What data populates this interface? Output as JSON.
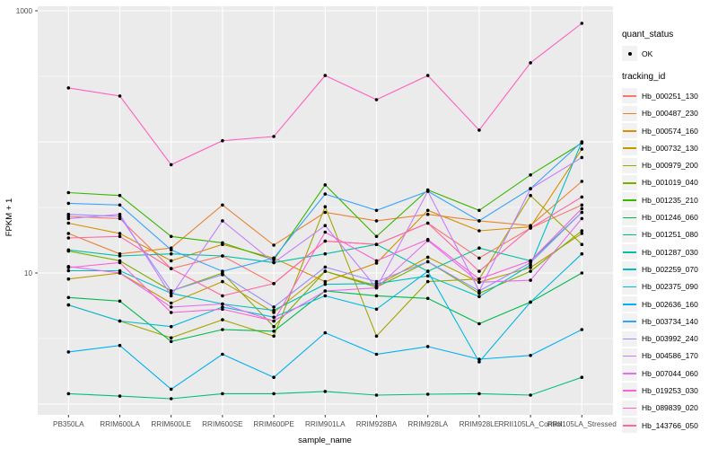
{
  "figure": {
    "background": "#FFFFFF",
    "panel_background": "#EBEBEB",
    "grid_color": "#FFFFFF",
    "tick_label_color": "#4D4D4D",
    "axis_title_color": "#000000",
    "point_color": "#000000",
    "legend_key_background": "#F2F2F2"
  },
  "chart_data": {
    "type": "line",
    "title": "",
    "xlabel": "sample_name",
    "ylabel": "FPKM + 1",
    "grid": true,
    "legend_position": "right",
    "x_categories": [
      "PB350LA",
      "RRIM600LA",
      "RRIM600LE",
      "RRIM600SE",
      "RRIM600PE",
      "RRIM901LA",
      "RRIM928BA",
      "RRIM928LA",
      "RRIM928LE",
      "RRII105LA_Control",
      "RRII105LA_Stressed"
    ],
    "y_scale": "log10",
    "y_tick_values": [
      1000,
      10
    ],
    "y_tick_labels": [
      "1000",
      "10"
    ],
    "y_major_gridlines": [
      1,
      10,
      100,
      1000
    ],
    "y_minor_gridlines": [
      3.162,
      31.62,
      316.2
    ],
    "y_range_approx": [
      0.9,
      1200
    ],
    "legend": {
      "quant_status_title": "quant_status",
      "quant_status_items": [
        "OK"
      ],
      "tracking_id_title": "tracking_id"
    },
    "series": [
      {
        "name": "Hb_000251_130",
        "color": "#F8766D",
        "values": [
          27,
          26,
          10.8,
          13.5,
          8.3,
          17.5,
          16.5,
          24,
          13,
          22,
          33
        ]
      },
      {
        "name": "Hb_000487_230",
        "color": "#EA8331",
        "values": [
          20,
          14,
          15.5,
          33,
          16.3,
          29,
          25,
          28,
          25,
          23,
          50
        ]
      },
      {
        "name": "Hb_000574_160",
        "color": "#D89000",
        "values": [
          24,
          20,
          12.4,
          16.5,
          13,
          8.6,
          11.9,
          30,
          21,
          22.5,
          88
        ]
      },
      {
        "name": "Hb_000732_130",
        "color": "#C09B00",
        "values": [
          9,
          10,
          5.9,
          8.6,
          5.0,
          10.3,
          8.0,
          13.2,
          8.5,
          11,
          20
        ]
      },
      {
        "name": "Hb_000979_200",
        "color": "#A3A500",
        "values": [
          5.7,
          4.3,
          3.2,
          4.4,
          3.3,
          32,
          3.3,
          8.6,
          9,
          39,
          16.5
        ]
      },
      {
        "name": "Hb_001019_040",
        "color": "#7CAE00",
        "values": [
          14.7,
          12.4,
          7.3,
          10,
          3.9,
          10.3,
          7.8,
          12.2,
          7.0,
          10.3,
          21
        ]
      },
      {
        "name": "Hb_001235_210",
        "color": "#39B600",
        "values": [
          41,
          39,
          19,
          17,
          12.6,
          47,
          19,
          43,
          30,
          56,
          98
        ]
      },
      {
        "name": "Hb_001246_060",
        "color": "#00BB4E",
        "values": [
          6.5,
          6.1,
          3.0,
          3.7,
          3.6,
          7.3,
          6.7,
          6.4,
          4.1,
          6.0,
          10
        ]
      },
      {
        "name": "Hb_001251_080",
        "color": "#00BF7D",
        "values": [
          1.2,
          1.15,
          1.1,
          1.2,
          1.2,
          1.25,
          1.17,
          1.19,
          1.2,
          1.17,
          1.6
        ]
      },
      {
        "name": "Hb_001287_030",
        "color": "#00C1A3",
        "values": [
          15,
          13.5,
          14,
          13.5,
          12,
          14,
          16.5,
          10.3,
          15.5,
          12.4,
          29
        ]
      },
      {
        "name": "Hb_002259_070",
        "color": "#00BFC4",
        "values": [
          10.4,
          10.4,
          7.0,
          5.8,
          5.2,
          8.2,
          8.3,
          9.5,
          6.6,
          11.5,
          100
        ]
      },
      {
        "name": "Hb_002375_090",
        "color": "#00BAE0",
        "values": [
          5.7,
          4.3,
          3.9,
          5.5,
          4.6,
          6.7,
          5.3,
          10.3,
          2.1,
          6.0,
          14
        ]
      },
      {
        "name": "Hb_002636_160",
        "color": "#00B0F6",
        "values": [
          2.5,
          2.8,
          1.3,
          2.4,
          1.6,
          3.5,
          2.4,
          2.75,
          2.2,
          2.35,
          3.7
        ]
      },
      {
        "name": "Hb_003734_140",
        "color": "#35A2FF",
        "values": [
          34,
          33,
          15,
          10.3,
          13,
          40,
          30,
          42,
          25,
          44,
          100
        ]
      },
      {
        "name": "Hb_003992_240",
        "color": "#9590FF",
        "values": [
          28,
          27,
          7.3,
          9.7,
          5.5,
          11.1,
          8.6,
          12.2,
          7.3,
          12,
          29
        ]
      },
      {
        "name": "Hb_004586_170",
        "color": "#C77CFF",
        "values": [
          26,
          28,
          6.7,
          25,
          12,
          23,
          7.7,
          42,
          7.3,
          44,
          76
        ]
      },
      {
        "name": "Hb_007044_060",
        "color": "#E76BF3",
        "values": [
          11.2,
          10,
          5.5,
          5.8,
          4.3,
          7.3,
          7.7,
          17.7,
          8.5,
          8.8,
          26
        ]
      },
      {
        "name": "Hb_019253_030",
        "color": "#FA62DB",
        "values": [
          11,
          12,
          5.0,
          5.3,
          4.3,
          20.5,
          12.4,
          18,
          9,
          12.4,
          31
        ]
      },
      {
        "name": "Hb_089839_020",
        "color": "#FF61C3",
        "values": [
          258,
          224,
          67,
          102,
          110,
          321,
          210,
          321,
          123,
          401,
          802
        ]
      },
      {
        "name": "Hb_143766_050",
        "color": "#FF67A4",
        "values": [
          18.5,
          19,
          10.8,
          6.7,
          8.3,
          17.5,
          16.5,
          24,
          10.3,
          22,
          38
        ]
      }
    ]
  }
}
